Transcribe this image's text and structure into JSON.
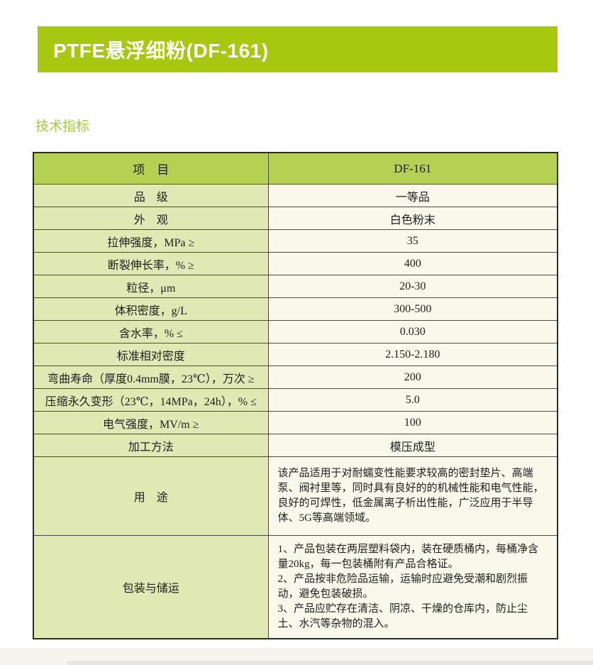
{
  "page": {
    "banner_title": "PTFE悬浮细粉(DF-161)",
    "section_heading": "技术指标"
  },
  "colors": {
    "banner_green": "#a8c80f",
    "heading_green": "#a3cb3a",
    "table_header_green": "#b6d054",
    "label_cell_green": "#e0e8b4",
    "value_cell_cream": "#f9f8eb",
    "border_inner": "#4a4a42",
    "border_outer": "#2b2b28",
    "text_dark": "#1e1e1e"
  },
  "table": {
    "header": {
      "item": "项　目",
      "value": "DF-161"
    },
    "rows": [
      {
        "label": "品　级",
        "value": "一等品"
      },
      {
        "label": "外　观",
        "value": "白色粉末"
      },
      {
        "label": "拉伸强度，MPa ≥",
        "value": "35"
      },
      {
        "label": "断裂伸长率，% ≥",
        "value": "400"
      },
      {
        "label": "粒径，μm",
        "value": "20-30"
      },
      {
        "label": "体积密度，g/L",
        "value": "300-500"
      },
      {
        "label": "含水率，% ≤",
        "value": "0.030"
      },
      {
        "label": "标准相对密度",
        "value": "2.150-2.180"
      },
      {
        "label": "弯曲寿命（厚度0.4mm膜，23℃），万次 ≥",
        "value": "200"
      },
      {
        "label": "压缩永久变形（23℃，14MPa，24h），% ≤",
        "value": "5.0"
      },
      {
        "label": "电气强度，MV/m ≥",
        "value": "100"
      },
      {
        "label": "加工方法",
        "value": "模压成型"
      },
      {
        "label": "用　途",
        "paragraph": true,
        "kind": "use",
        "value": "该产品适用于对耐蠕变性能要求较高的密封垫片、高端泵、阀衬里等，同时具有良好的的机械性能和电气性能，良好的可焊性，低金属离子析出性能，广泛应用于半导体、5G等高端领域。"
      },
      {
        "label": "包装与储运",
        "paragraph": true,
        "kind": "pack",
        "value": [
          "1、产品包装在两层塑料袋内，装在硬质桶内，每桶净含量20kg，每一包装桶附有产品合格证。",
          "2、产品按非危险品运输，运输时应避免受潮和剧烈振动，避免包装破损。",
          "3、产品应贮存在清洁、阴凉、干燥的仓库内，防止尘土、水汽等杂物的混入。"
        ]
      }
    ]
  }
}
